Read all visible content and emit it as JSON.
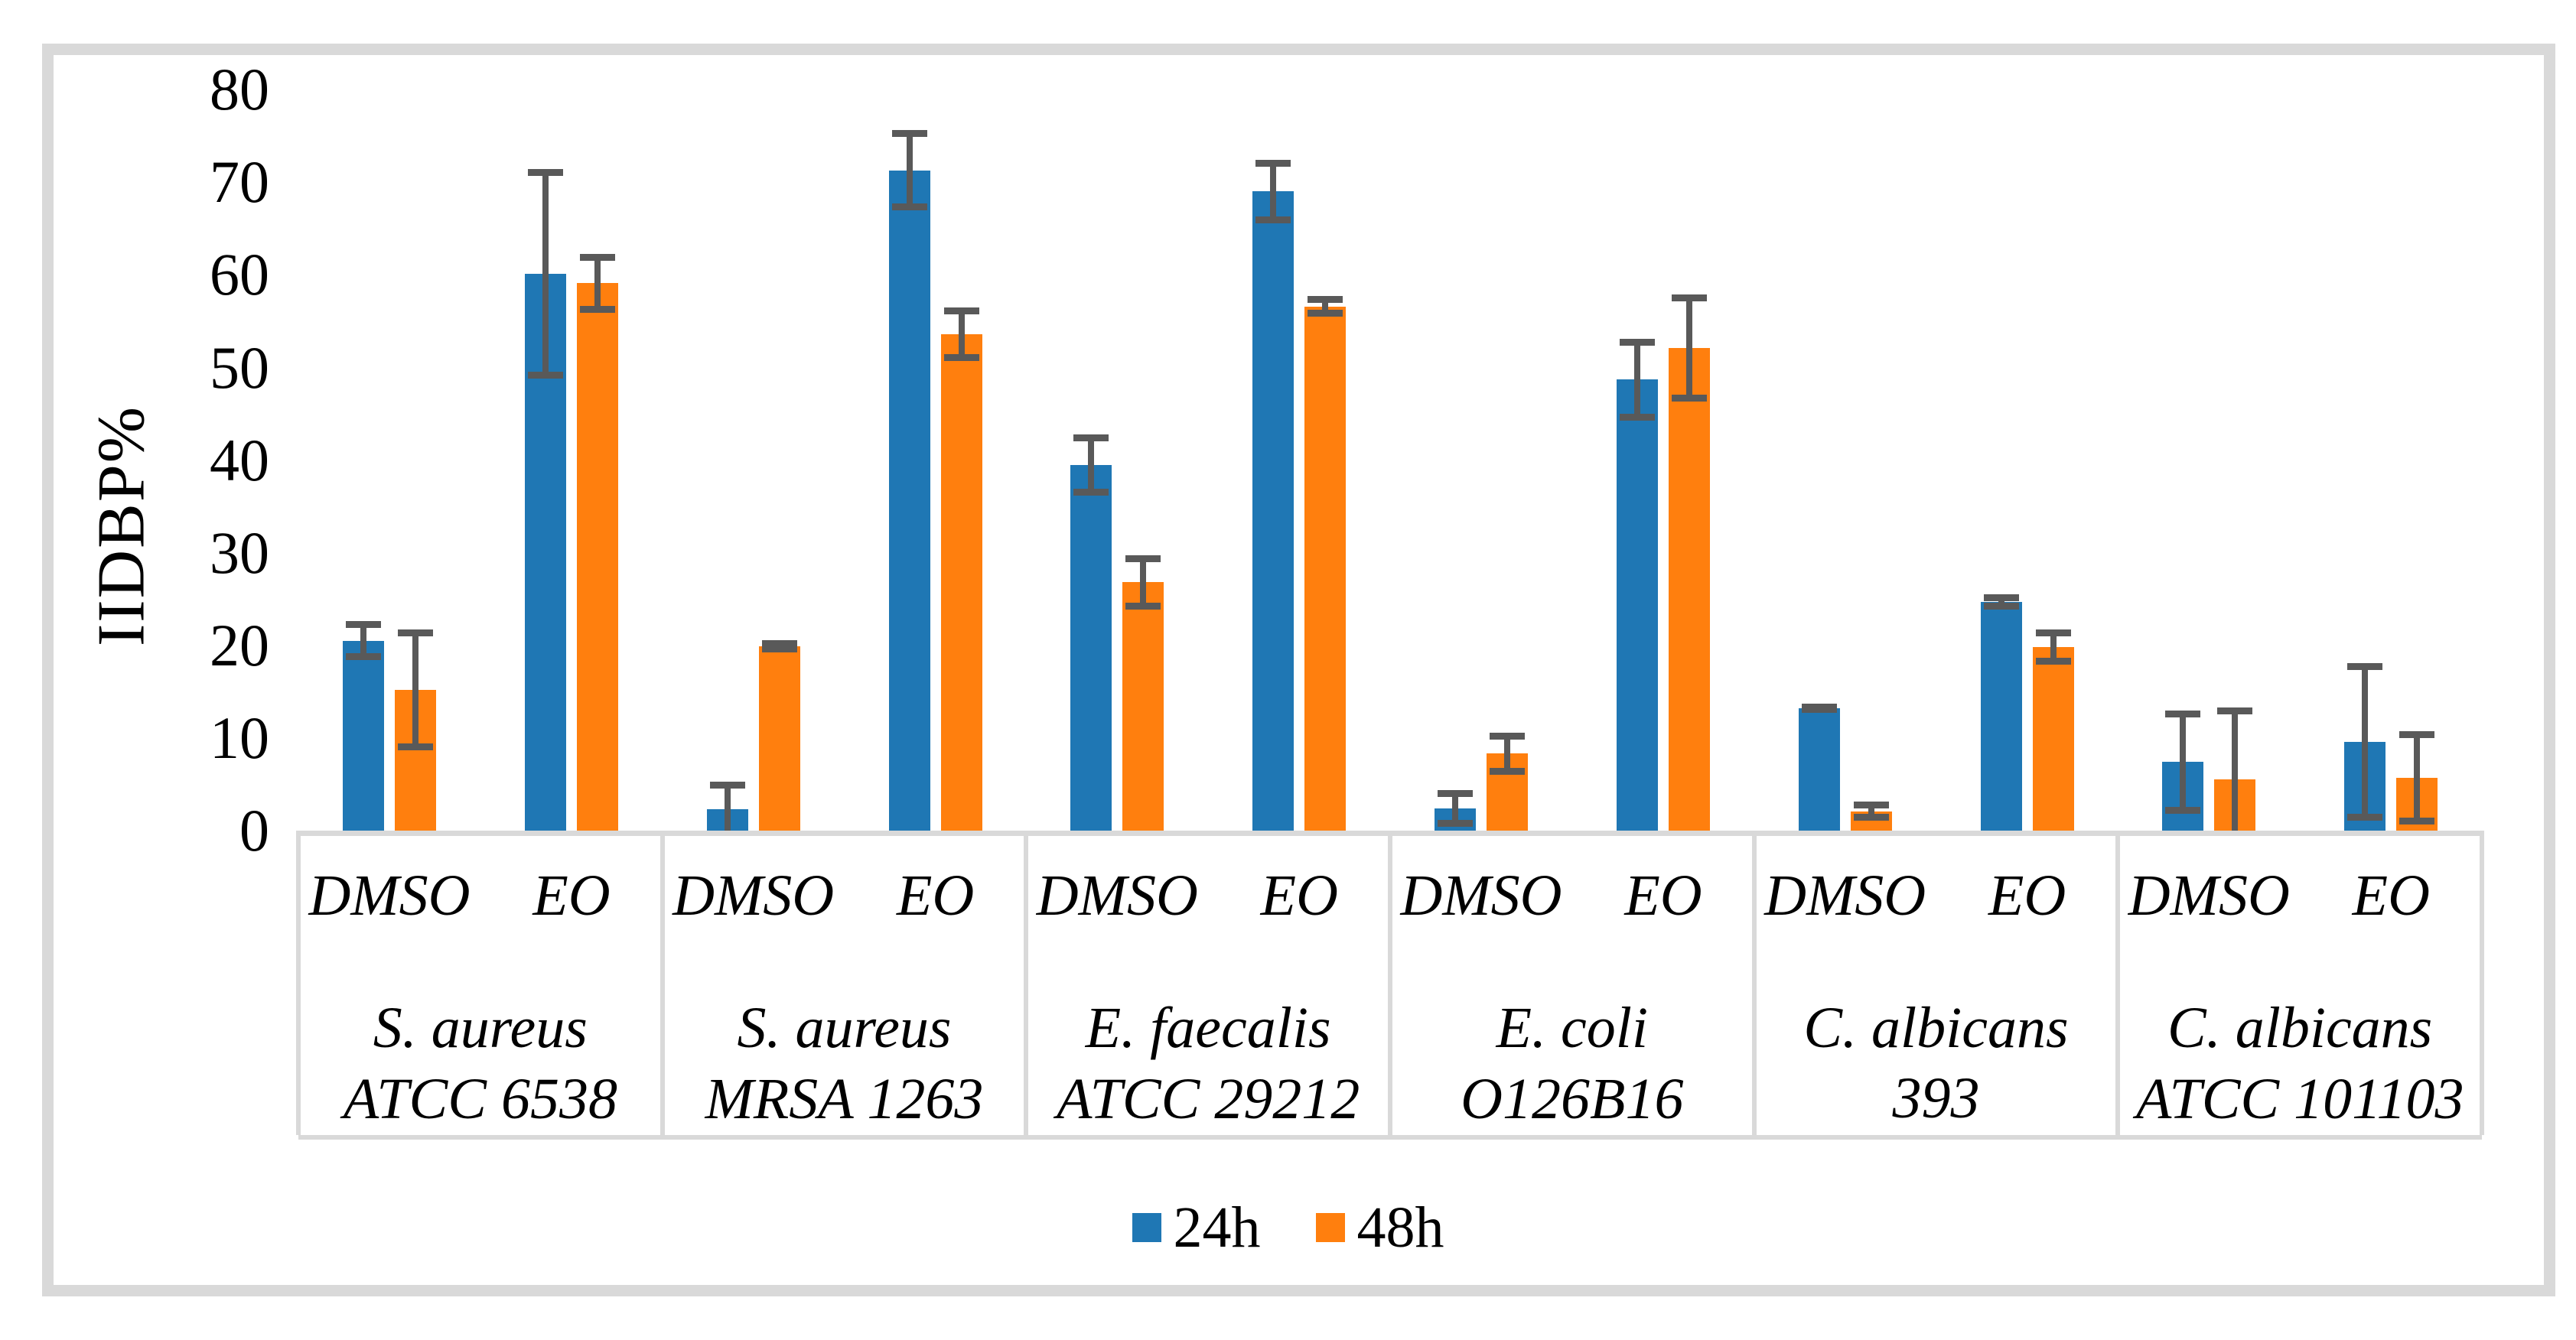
{
  "figure": {
    "background_color": "#ffffff",
    "frame_color": "#d9d9d9"
  },
  "chart_data": {
    "type": "bar",
    "title": "",
    "xlabel": "",
    "ylabel": "IIDBP%",
    "ylim": [
      0,
      80
    ],
    "yticks": [
      0,
      10,
      20,
      30,
      40,
      50,
      60,
      70,
      80
    ],
    "grid": false,
    "legend_position": "bottom",
    "series": [
      "24h",
      "48h"
    ],
    "series_colors": [
      "#1F77B4",
      "#FF7F0E"
    ],
    "errorbar_color": "#595959",
    "axis_line_color": "#d9d9d9",
    "treatments_per_group": [
      "DMSO",
      "EO"
    ],
    "groups": [
      {
        "name": "S. aureus ATCC 6538",
        "name_lines": [
          "S. aureus",
          "ATCC 6538"
        ],
        "treatments": [
          {
            "label": "DMSO",
            "values": [
              20.5,
              15.2
            ],
            "errors": [
              2.1,
              6.5
            ]
          },
          {
            "label": "EO",
            "values": [
              60.1,
              59.1
            ],
            "errors": [
              11.3,
              3.2
            ]
          }
        ]
      },
      {
        "name": "S. aureus MRSA 1263",
        "name_lines": [
          "S. aureus",
          "MRSA 1263"
        ],
        "treatments": [
          {
            "label": "DMSO",
            "values": [
              2.3,
              19.9
            ],
            "errors": [
              3.0,
              0.7
            ]
          },
          {
            "label": "EO",
            "values": [
              71.3,
              53.6
            ],
            "errors": [
              4.3,
              2.9
            ]
          }
        ]
      },
      {
        "name": "E. faecalis ATCC 29212",
        "name_lines": [
          "E. faecalis",
          "ATCC 29212"
        ],
        "treatments": [
          {
            "label": "DMSO",
            "values": [
              39.5,
              26.8
            ],
            "errors": [
              3.3,
              2.9
            ]
          },
          {
            "label": "EO",
            "values": [
              69.0,
              56.6
            ],
            "errors": [
              3.4,
              1.1
            ]
          }
        ]
      },
      {
        "name": "E. coli O126B16",
        "name_lines": [
          "E. coli",
          "O126B16"
        ],
        "treatments": [
          {
            "label": "DMSO",
            "values": [
              2.4,
              8.3
            ],
            "errors": [
              2.0,
              2.3
            ]
          },
          {
            "label": "EO",
            "values": [
              48.7,
              52.1
            ],
            "errors": [
              4.4,
              5.8
            ]
          }
        ]
      },
      {
        "name": "C. albicans 393",
        "name_lines": [
          "C. albicans 393"
        ],
        "treatments": [
          {
            "label": "DMSO",
            "values": [
              13.2,
              2.1
            ],
            "errors": [
              0.5,
              1.0
            ]
          },
          {
            "label": "EO",
            "values": [
              24.7,
              19.8
            ],
            "errors": [
              0.8,
              1.9
            ]
          }
        ]
      },
      {
        "name": "C. albicans ATCC 101103",
        "name_lines": [
          "C. albicans",
          "ATCC 101103"
        ],
        "treatments": [
          {
            "label": "DMSO",
            "values": [
              7.4,
              5.5
            ],
            "errors": [
              5.6,
              7.8
            ]
          },
          {
            "label": "EO",
            "values": [
              9.6,
              5.7
            ],
            "errors": [
              8.5,
              5.0
            ]
          }
        ]
      }
    ],
    "legend": [
      {
        "label": "24h",
        "color": "#1F77B4"
      },
      {
        "label": "48h",
        "color": "#FF7F0E"
      }
    ]
  }
}
